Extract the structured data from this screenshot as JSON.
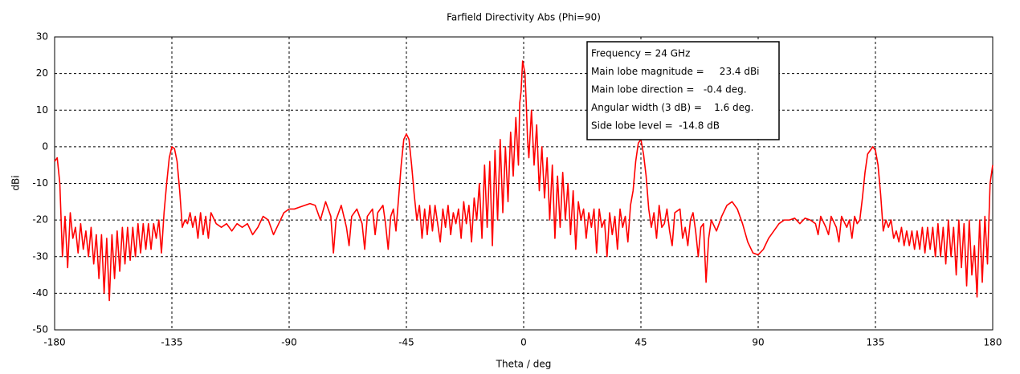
{
  "chart_data": {
    "type": "line",
    "title": "Farfield Directivity Abs (Phi=90)",
    "xlabel": "Theta / deg",
    "ylabel": "dBi",
    "xlim": [
      -180,
      180
    ],
    "ylim": [
      -50,
      30
    ],
    "xticks": [
      -180,
      -135,
      -90,
      -45,
      0,
      45,
      90,
      135,
      180
    ],
    "yticks": [
      -50,
      -40,
      -30,
      -20,
      -10,
      0,
      10,
      20,
      30
    ],
    "grid": true,
    "annotation": [
      "Frequency = 24 GHz",
      "Main lobe magnitude =     23.4 dBi",
      "Main lobe direction =   -0.4 deg.",
      "Angular width (3 dB) =    1.6 deg.",
      "Side lobe level =  -14.8 dB"
    ],
    "x": [
      -180,
      -179,
      -178,
      -177,
      -176,
      -175,
      -174,
      -173,
      -172,
      -171,
      -170,
      -169,
      -168,
      -167,
      -166,
      -165,
      -164,
      -163,
      -162,
      -161,
      -160,
      -159,
      -158,
      -157,
      -156,
      -155,
      -154,
      -153,
      -152,
      -151,
      -150,
      -149,
      -148,
      -147,
      -146,
      -145,
      -144,
      -143,
      -142,
      -141,
      -140,
      -139,
      -138,
      -137,
      -136,
      -135,
      -134,
      -133,
      -132,
      -131,
      -130,
      -129,
      -128,
      -127,
      -126,
      -125,
      -124,
      -123,
      -122,
      -121,
      -120,
      -118,
      -116,
      -114,
      -112,
      -110,
      -108,
      -106,
      -104,
      -102,
      -100,
      -98,
      -96,
      -94,
      -92,
      -90,
      -88,
      -86,
      -84,
      -82,
      -80,
      -78,
      -76,
      -74,
      -73,
      -72,
      -70,
      -68,
      -67,
      -66,
      -64,
      -62,
      -61,
      -60,
      -58,
      -57,
      -56,
      -54,
      -53,
      -52,
      -51,
      -50,
      -49,
      -48,
      -47,
      -46,
      -45,
      -44,
      -43,
      -42,
      -41,
      -40,
      -39,
      -38,
      -37,
      -36,
      -35,
      -34,
      -33,
      -32,
      -31,
      -30,
      -29,
      -28,
      -27,
      -26,
      -25,
      -24,
      -23,
      -22,
      -21,
      -20,
      -19,
      -18,
      -17,
      -16,
      -15,
      -14,
      -13,
      -12,
      -11,
      -10,
      -9,
      -8,
      -7,
      -6,
      -5,
      -4,
      -3,
      -2,
      -1.5,
      -1,
      -0.4,
      0,
      0.5,
      1,
      1.5,
      2,
      3,
      4,
      5,
      6,
      7,
      8,
      9,
      10,
      11,
      12,
      13,
      14,
      15,
      16,
      17,
      18,
      19,
      20,
      21,
      22,
      23,
      24,
      25,
      26,
      27,
      28,
      29,
      30,
      31,
      32,
      33,
      34,
      35,
      36,
      37,
      38,
      39,
      40,
      41,
      42,
      43,
      44,
      45,
      46,
      47,
      48,
      49,
      50,
      51,
      52,
      53,
      54,
      55,
      56,
      57,
      58,
      60,
      61,
      62,
      63,
      64,
      65,
      66,
      67,
      68,
      69,
      70,
      71,
      72,
      74,
      76,
      78,
      80,
      82,
      84,
      86,
      88,
      90,
      92,
      94,
      96,
      98,
      100,
      102,
      104,
      106,
      108,
      110,
      112,
      113,
      114,
      116,
      117,
      118,
      120,
      121,
      122,
      124,
      125,
      126,
      127,
      128,
      129,
      130,
      131,
      132,
      134,
      135,
      136,
      137,
      138,
      139,
      140,
      141,
      142,
      143,
      144,
      145,
      146,
      147,
      148,
      149,
      150,
      151,
      152,
      153,
      154,
      155,
      156,
      157,
      158,
      159,
      160,
      161,
      162,
      163,
      164,
      165,
      166,
      167,
      168,
      169,
      170,
      171,
      172,
      173,
      174,
      175,
      176,
      177,
      178,
      179,
      180
    ],
    "series": [
      {
        "name": "Directivity",
        "color": "#ff0000",
        "values": [
          -4,
          -3,
          -10,
          -30,
          -19,
          -33,
          -18,
          -25,
          -22,
          -29,
          -21,
          -28,
          -23,
          -30,
          -22,
          -32,
          -24,
          -36,
          -24,
          -40,
          -25,
          -42,
          -24,
          -36,
          -23,
          -34,
          -22,
          -32,
          -22,
          -31,
          -22,
          -30,
          -21,
          -29,
          -21,
          -28,
          -21,
          -28,
          -21,
          -25,
          -20,
          -29,
          -18,
          -10,
          -3,
          0,
          -0.5,
          -4,
          -12,
          -22,
          -20,
          -21,
          -18,
          -22,
          -19,
          -25,
          -18,
          -24,
          -19,
          -25,
          -18,
          -21,
          -22,
          -21,
          -23,
          -21,
          -22,
          -21,
          -24,
          -22,
          -19,
          -20,
          -24,
          -21,
          -18,
          -17,
          -17,
          -16.5,
          -16,
          -15.5,
          -16,
          -20,
          -15,
          -19,
          -29,
          -20,
          -16,
          -22,
          -27,
          -19,
          -17,
          -21,
          -28,
          -19,
          -17,
          -24,
          -18,
          -16,
          -21,
          -28,
          -19,
          -17,
          -23,
          -14,
          -5,
          2,
          3.5,
          2,
          -5,
          -13,
          -20,
          -16,
          -25,
          -17,
          -24,
          -16,
          -23,
          -16,
          -21,
          -26,
          -17,
          -22,
          -16,
          -24,
          -18,
          -21,
          -17,
          -25,
          -15,
          -21,
          -16,
          -26,
          -14,
          -20,
          -10,
          -25,
          -5,
          -22,
          -4,
          -27,
          -1,
          -20,
          2,
          -18,
          0,
          -15,
          4,
          -8,
          8,
          -5,
          12,
          15,
          23.4,
          22,
          20,
          12,
          2,
          -3,
          10,
          -5,
          6,
          -12,
          0,
          -14,
          -3,
          -20,
          -5,
          -25,
          -8,
          -22,
          -7,
          -20,
          -10,
          -24,
          -12,
          -28,
          -15,
          -20,
          -17,
          -25,
          -18,
          -22,
          -17,
          -29,
          -17,
          -22,
          -20,
          -30,
          -18,
          -24,
          -19,
          -28,
          -17,
          -22,
          -19,
          -26,
          -16,
          -12,
          -4,
          1,
          2,
          -2,
          -8,
          -17,
          -22,
          -18,
          -25,
          -16,
          -22,
          -21,
          -17,
          -23,
          -27,
          -18,
          -17,
          -25,
          -22,
          -27,
          -20,
          -18,
          -23,
          -30,
          -22,
          -21,
          -37,
          -25,
          -20,
          -23,
          -19,
          -16,
          -15,
          -17,
          -21,
          -26,
          -29,
          -29.5,
          -28,
          -25,
          -23,
          -21,
          -20,
          -20,
          -19.5,
          -21,
          -19.5,
          -20,
          -21,
          -24,
          -19,
          -22,
          -24,
          -19,
          -22,
          -26,
          -19,
          -22,
          -20,
          -25,
          -19,
          -21,
          -20,
          -14,
          -7,
          -2,
          0,
          -1,
          -5,
          -13,
          -23,
          -20,
          -22,
          -20,
          -25,
          -23,
          -26,
          -22,
          -27,
          -23,
          -27,
          -23,
          -28,
          -23,
          -28,
          -22,
          -29,
          -22,
          -28,
          -22,
          -30,
          -21,
          -30,
          -22,
          -32,
          -20,
          -30,
          -22,
          -35,
          -20,
          -33,
          -21,
          -38,
          -20,
          -35,
          -27,
          -41,
          -20,
          -37,
          -19,
          -32,
          -10,
          -5
        ]
      }
    ]
  }
}
